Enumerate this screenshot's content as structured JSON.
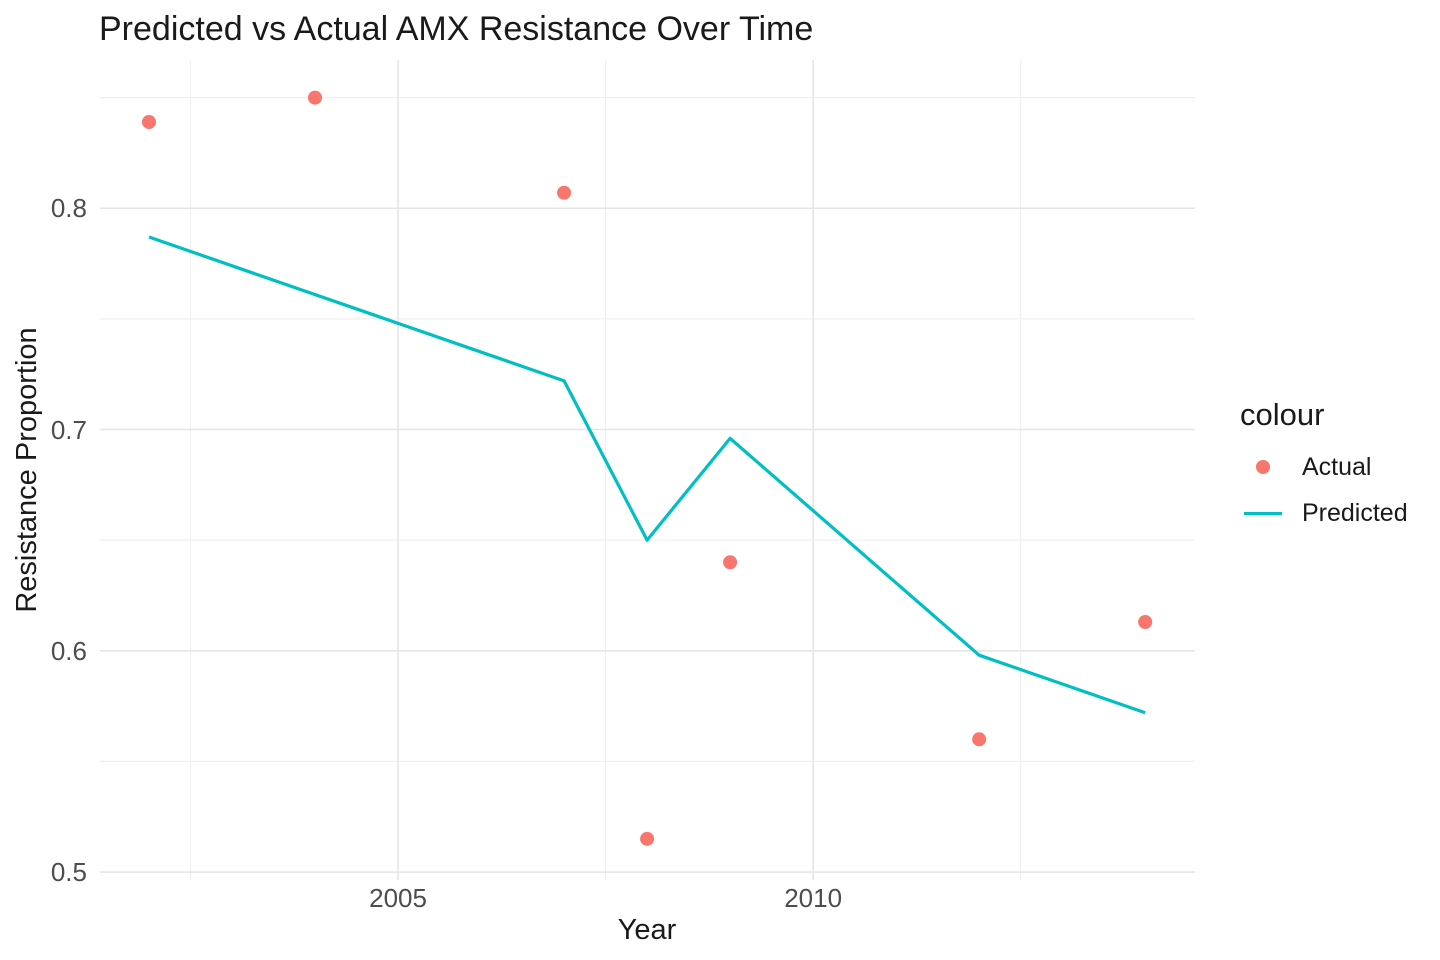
{
  "chart_data": {
    "type": "line",
    "title": "Predicted vs Actual AMX Resistance Over Time",
    "xlabel": "Year",
    "ylabel": "Resistance Proportion",
    "xlim": [
      2001.41,
      2014.6
    ],
    "ylim": [
      0.4964,
      0.867
    ],
    "x_tick_values": [
      2005,
      2010
    ],
    "x_tick_labels": [
      "2005",
      "2010"
    ],
    "x_minor_tick_values": [
      2002.5,
      2007.5,
      2012.5
    ],
    "y_tick_values": [
      0.5,
      0.6,
      0.7,
      0.8
    ],
    "y_tick_labels": [
      "0.5",
      "0.6",
      "0.7",
      "0.8"
    ],
    "y_minor_tick_values": [
      0.55,
      0.65,
      0.75,
      0.85
    ],
    "grid": true,
    "legend": {
      "title": "colour",
      "position": "right",
      "entries": [
        {
          "label": "Actual",
          "mark": "point",
          "color": "#F8766D"
        },
        {
          "label": "Predicted",
          "mark": "line",
          "color": "#00BFC4"
        }
      ]
    },
    "series": [
      {
        "name": "Actual",
        "mark": "point",
        "color": "#F8766D",
        "x": [
          2002,
          2004,
          2007,
          2008,
          2009,
          2012,
          2014
        ],
        "y": [
          0.839,
          0.85,
          0.807,
          0.515,
          0.64,
          0.56,
          0.613
        ]
      },
      {
        "name": "Predicted",
        "mark": "line",
        "color": "#00BFC4",
        "x": [
          2002,
          2007,
          2008,
          2009,
          2012,
          2014
        ],
        "y": [
          0.787,
          0.722,
          0.65,
          0.696,
          0.598,
          0.572
        ]
      }
    ]
  },
  "colors": {
    "background": "#FFFFFF",
    "grid_major": "#E5E5E5",
    "grid_minor": "#EFEFEF",
    "title_text": "#1A1A1A",
    "tick_text": "#4D4D4D"
  }
}
